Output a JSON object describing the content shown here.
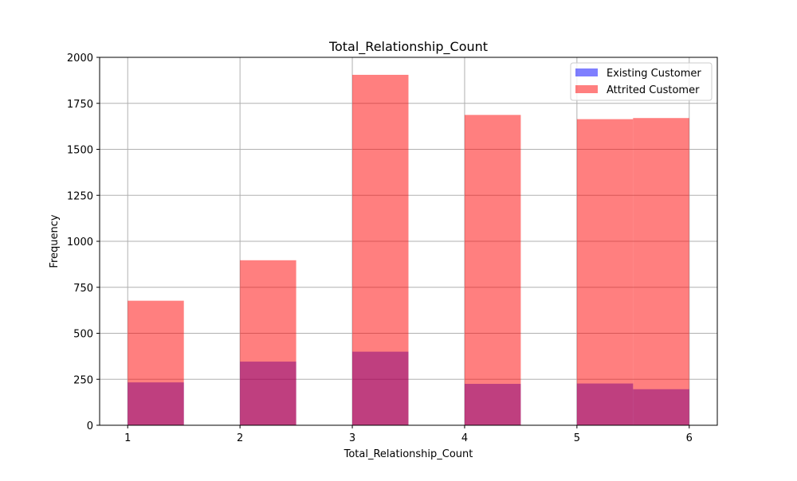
{
  "chart_data": {
    "type": "bar",
    "title": "Total_Relationship_Count",
    "xlabel": "Total_Relationship_Count",
    "ylabel": "Frequency",
    "xlim": [
      0.75,
      6.25
    ],
    "ylim": [
      0,
      2000
    ],
    "x_ticks": [
      1,
      2,
      3,
      4,
      5,
      6
    ],
    "y_ticks": [
      0,
      250,
      500,
      750,
      1000,
      1250,
      1500,
      1750,
      2000
    ],
    "grid": true,
    "legend_position": "top-right",
    "bin_edges": [
      1.0,
      1.5,
      2.0,
      2.5,
      3.0,
      3.5,
      4.0,
      4.5,
      5.0,
      5.5,
      6.0
    ],
    "series": [
      {
        "name": "Existing Customer",
        "color": "#0000ff",
        "opacity": 0.5,
        "values": [
          233,
          0,
          346,
          0,
          400,
          0,
          225,
          0,
          227,
          196
        ]
      },
      {
        "name": "Attrited Customer",
        "color": "#ff0000",
        "opacity": 0.5,
        "values": [
          677,
          0,
          897,
          0,
          1905,
          0,
          1687,
          0,
          1664,
          1670
        ]
      }
    ]
  }
}
